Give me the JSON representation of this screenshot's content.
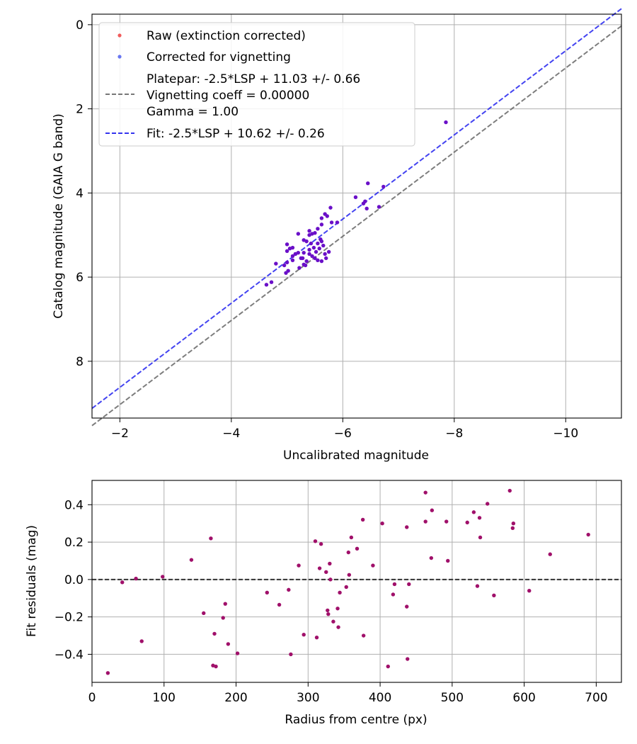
{
  "chart_data": [
    {
      "type": "scatter",
      "xlabel": "Uncalibrated magnitude",
      "ylabel": "Catalog magnitude (GAIA G band)",
      "xlim": [
        -1.5,
        -11.0
      ],
      "ylim": [
        -0.25,
        9.35
      ],
      "x_inverted": true,
      "y_inverted": true,
      "grid": true,
      "x_ticks": [
        -2,
        -4,
        -6,
        -8,
        -10
      ],
      "x_tick_labels": [
        "−2",
        "−4",
        "−6",
        "−8",
        "−10"
      ],
      "y_ticks": [
        0,
        2,
        4,
        6,
        8
      ],
      "y_tick_labels": [
        "0",
        "2",
        "4",
        "6",
        "8"
      ],
      "legend_position": "top-left",
      "legend": {
        "raw": "Raw (extinction corrected)",
        "corrected": "Corrected for vignetting",
        "platepar_1": "Platepar: -2.5*LSP + 11.03 +/- 0.66",
        "platepar_2": "Vignetting coeff = 0.00000",
        "platepar_3": "Gamma = 1.00",
        "fit": "Fit: -2.5*LSP + 10.62 +/- 0.26"
      },
      "lines": [
        {
          "name": "Platepar",
          "intercept": 11.03,
          "color": "#666666"
        },
        {
          "name": "Fit",
          "intercept": 10.62,
          "color": "#2222ee"
        }
      ],
      "points": [
        [
          -7.85,
          2.32
        ],
        [
          -6.73,
          3.85
        ],
        [
          -6.45,
          3.77
        ],
        [
          -6.4,
          4.2
        ],
        [
          -6.37,
          4.25
        ],
        [
          -6.43,
          4.37
        ],
        [
          -6.23,
          4.1
        ],
        [
          -6.65,
          4.33
        ],
        [
          -5.9,
          4.7
        ],
        [
          -5.78,
          4.35
        ],
        [
          -5.8,
          4.7
        ],
        [
          -5.68,
          4.5
        ],
        [
          -5.72,
          4.55
        ],
        [
          -5.62,
          4.6
        ],
        [
          -5.62,
          4.75
        ],
        [
          -5.55,
          4.85
        ],
        [
          -5.5,
          4.95
        ],
        [
          -5.45,
          4.97
        ],
        [
          -5.4,
          4.9
        ],
        [
          -5.4,
          5.0
        ],
        [
          -5.3,
          5.12
        ],
        [
          -5.2,
          4.97
        ],
        [
          -5.6,
          5.1
        ],
        [
          -5.55,
          5.2
        ],
        [
          -5.65,
          5.25
        ],
        [
          -5.62,
          5.15
        ],
        [
          -5.48,
          5.3
        ],
        [
          -5.52,
          5.4
        ],
        [
          -5.68,
          5.45
        ],
        [
          -5.75,
          5.4
        ],
        [
          -5.35,
          5.15
        ],
        [
          -5.4,
          5.35
        ],
        [
          -5.3,
          5.42
        ],
        [
          -5.1,
          5.3
        ],
        [
          -5.0,
          5.22
        ],
        [
          -5.05,
          5.32
        ],
        [
          -5.15,
          5.45
        ],
        [
          -5.1,
          5.5
        ],
        [
          -5.2,
          5.42
        ],
        [
          -5.25,
          5.55
        ],
        [
          -5.35,
          5.62
        ],
        [
          -5.3,
          5.7
        ],
        [
          -5.45,
          5.5
        ],
        [
          -5.5,
          5.55
        ],
        [
          -5.55,
          5.6
        ],
        [
          -5.62,
          5.62
        ],
        [
          -5.7,
          5.55
        ],
        [
          -5.1,
          5.6
        ],
        [
          -5.0,
          5.65
        ],
        [
          -4.95,
          5.72
        ],
        [
          -4.8,
          5.68
        ],
        [
          -5.02,
          5.85
        ],
        [
          -4.98,
          5.9
        ],
        [
          -5.22,
          5.78
        ],
        [
          -5.33,
          5.72
        ],
        [
          -4.72,
          6.12
        ],
        [
          -4.63,
          6.18
        ],
        [
          -5.15,
          5.45
        ],
        [
          -5.4,
          5.45
        ],
        [
          -5.0,
          5.38
        ],
        [
          -5.28,
          5.55
        ],
        [
          -5.58,
          5.32
        ],
        [
          -5.43,
          5.2
        ]
      ],
      "point_colors": {
        "raw": "#ee3333",
        "corrected": "#4455ee",
        "overlap": "#6a0fc8"
      }
    },
    {
      "type": "scatter",
      "xlabel": "Radius from centre (px)",
      "ylabel": "Fit residuals (mag)",
      "xlim": [
        0,
        735
      ],
      "ylim": [
        -0.55,
        0.53
      ],
      "grid": true,
      "x_ticks": [
        0,
        100,
        200,
        300,
        400,
        500,
        600,
        700
      ],
      "x_tick_labels": [
        "0",
        "100",
        "200",
        "300",
        "400",
        "500",
        "600",
        "700"
      ],
      "y_ticks": [
        -0.4,
        -0.2,
        0.0,
        0.2,
        0.4
      ],
      "y_tick_labels": [
        "−0.4",
        "−0.2",
        "0.0",
        "0.2",
        "0.4"
      ],
      "zero_line": 0.0,
      "point_color": "#a0106a",
      "points": [
        [
          22,
          -0.5
        ],
        [
          42,
          -0.015
        ],
        [
          61,
          0.005
        ],
        [
          69,
          -0.33
        ],
        [
          98,
          0.015
        ],
        [
          138,
          0.105
        ],
        [
          155,
          -0.18
        ],
        [
          165,
          0.22
        ],
        [
          168,
          -0.46
        ],
        [
          170,
          -0.29
        ],
        [
          172,
          -0.465
        ],
        [
          182,
          -0.205
        ],
        [
          185,
          -0.13
        ],
        [
          189,
          -0.345
        ],
        [
          202,
          -0.395
        ],
        [
          243,
          -0.07
        ],
        [
          260,
          -0.135
        ],
        [
          273,
          -0.055
        ],
        [
          276,
          -0.4
        ],
        [
          287,
          0.075
        ],
        [
          294,
          -0.295
        ],
        [
          310,
          0.205
        ],
        [
          312,
          -0.31
        ],
        [
          316,
          0.06
        ],
        [
          318,
          0.19
        ],
        [
          325,
          0.04
        ],
        [
          327,
          -0.165
        ],
        [
          328,
          -0.185
        ],
        [
          330,
          0.085
        ],
        [
          331,
          0.0
        ],
        [
          335,
          -0.225
        ],
        [
          341,
          -0.155
        ],
        [
          342,
          -0.255
        ],
        [
          344,
          -0.07
        ],
        [
          353,
          -0.04
        ],
        [
          356,
          0.145
        ],
        [
          357,
          0.025
        ],
        [
          360,
          0.225
        ],
        [
          368,
          0.165
        ],
        [
          376,
          0.32
        ],
        [
          377,
          -0.3
        ],
        [
          390,
          0.075
        ],
        [
          403,
          0.3
        ],
        [
          411,
          -0.465
        ],
        [
          418,
          -0.08
        ],
        [
          420,
          -0.025
        ],
        [
          437,
          0.28
        ],
        [
          437,
          -0.145
        ],
        [
          438,
          -0.425
        ],
        [
          440,
          -0.025
        ],
        [
          463,
          0.465
        ],
        [
          463,
          0.31
        ],
        [
          471,
          0.115
        ],
        [
          472,
          0.37
        ],
        [
          492,
          0.31
        ],
        [
          494,
          0.1
        ],
        [
          521,
          0.305
        ],
        [
          530,
          0.36
        ],
        [
          535,
          -0.035
        ],
        [
          538,
          0.33
        ],
        [
          539,
          0.225
        ],
        [
          549,
          0.405
        ],
        [
          558,
          -0.085
        ],
        [
          580,
          0.475
        ],
        [
          584,
          0.275
        ],
        [
          585,
          0.3
        ],
        [
          607,
          -0.06
        ],
        [
          636,
          0.135
        ],
        [
          689,
          0.24
        ]
      ]
    }
  ]
}
